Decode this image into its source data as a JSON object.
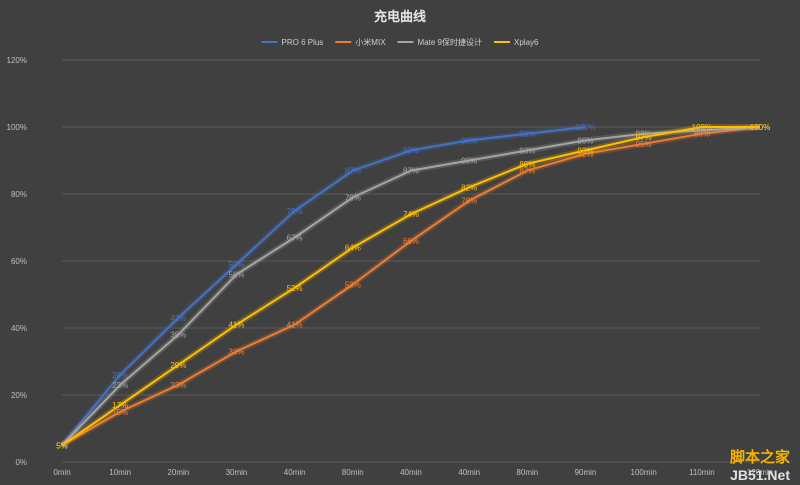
{
  "chart_data": {
    "type": "line",
    "title": "充电曲线",
    "categories": [
      "0min",
      "10min",
      "20min",
      "30min",
      "40min",
      "80min",
      "40min",
      "40min",
      "80min",
      "90min",
      "100min",
      "110min",
      "120min"
    ],
    "ylim": [
      0,
      120
    ],
    "yticks": [
      "0%",
      "20%",
      "40%",
      "60%",
      "80%",
      "100%",
      "120%"
    ],
    "grid": true,
    "legend_position": "top",
    "series": [
      {
        "name": "PRO 6 Plus",
        "color": "#4472c4",
        "values": [
          5,
          26,
          43,
          59,
          75,
          87,
          93,
          96,
          98,
          100,
          null,
          null,
          null
        ],
        "labels": [
          "5%",
          "26%",
          "43%",
          "59%",
          "75%",
          "87%",
          "93%",
          "96%",
          "98%",
          "100%",
          null,
          null,
          null
        ]
      },
      {
        "name": "小米MIX",
        "color": "#ed7d31",
        "values": [
          5,
          15,
          23,
          33,
          41,
          53,
          66,
          78,
          87,
          92,
          95,
          98,
          100
        ],
        "labels": [
          "5%",
          "15%",
          "23%",
          "33%",
          "41%",
          "53%",
          "66%",
          "78%",
          "87%",
          "92%",
          "95%",
          "98%",
          "100%"
        ]
      },
      {
        "name": "Mate 9保时捷设计",
        "color": "#a5a5a5",
        "values": [
          5,
          23,
          38,
          56,
          67,
          79,
          87,
          90,
          93,
          96,
          98,
          99,
          100
        ],
        "labels": [
          "5%",
          "23%",
          "38%",
          "56%",
          "67%",
          "79%",
          "87%",
          "90%",
          "93%",
          "96%",
          "98%",
          "99%",
          "100%"
        ]
      },
      {
        "name": "Xplay6",
        "color": "#ffc000",
        "values": [
          5,
          17,
          29,
          41,
          52,
          64,
          74,
          82,
          89,
          93,
          97,
          100,
          100
        ],
        "labels": [
          "5%",
          "17%",
          "29%",
          "41%",
          "52%",
          "64%",
          "74%",
          "82%",
          "89%",
          "93%",
          "97%",
          "100%",
          "100%"
        ]
      }
    ]
  },
  "watermark": {
    "top": "脚本之家",
    "bottom": "JB51.Net"
  }
}
